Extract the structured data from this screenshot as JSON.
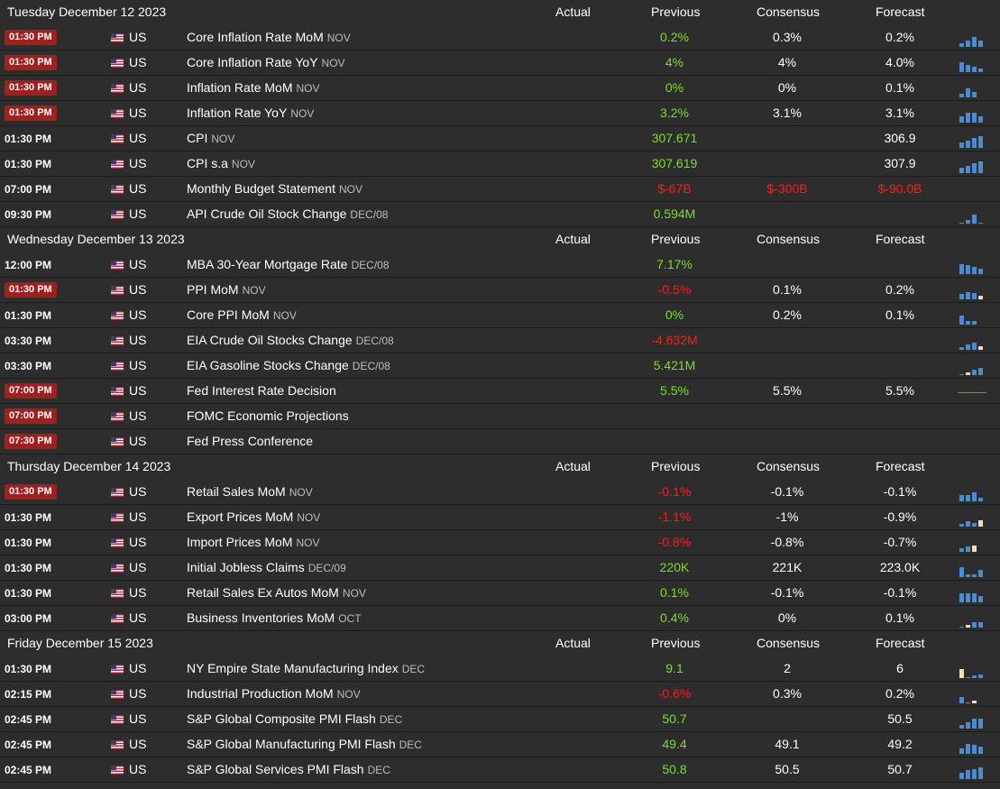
{
  "columns": {
    "actual": "Actual",
    "previous": "Previous",
    "consensus": "Consensus",
    "forecast": "Forecast"
  },
  "colors": {
    "positive": "#7ddf1f",
    "negative": "#ff1a1a",
    "badge": "#a21f1f",
    "spark_bar": "#4a8bd6",
    "spark_highlight": "#f2deb0"
  },
  "days": [
    {
      "title": "Tuesday December 12 2023",
      "events": [
        {
          "time": "01:30 PM",
          "highlight": true,
          "country": "US",
          "name": "Core Inflation Rate MoM",
          "ref": "NOV",
          "actual": "",
          "previous": "0.2%",
          "previous_color": "green",
          "consensus": "0.3%",
          "forecast": "0.2%",
          "spark_icon": "sparkline-icon",
          "spark": [
            {
              "v": 0.3
            },
            {
              "v": 0.5
            },
            {
              "v": 0.8
            },
            {
              "v": 0.5
            }
          ]
        },
        {
          "time": "01:30 PM",
          "highlight": true,
          "country": "US",
          "name": "Core Inflation Rate YoY",
          "ref": "NOV",
          "actual": "",
          "previous": "4%",
          "previous_color": "green",
          "consensus": "4%",
          "forecast": "4.0%",
          "spark_icon": "sparkline-icon",
          "spark": [
            {
              "v": 0.8
            },
            {
              "v": 0.6
            },
            {
              "v": 0.4
            },
            {
              "v": 0.3
            }
          ]
        },
        {
          "time": "01:30 PM",
          "highlight": true,
          "country": "US",
          "name": "Inflation Rate MoM",
          "ref": "NOV",
          "actual": "",
          "previous": "0%",
          "previous_color": "green",
          "consensus": "0%",
          "forecast": "0.1%",
          "spark_icon": "sparkline-icon",
          "spark": [
            {
              "v": 0.3
            },
            {
              "v": 0.7
            },
            {
              "v": 0.4
            }
          ]
        },
        {
          "time": "01:30 PM",
          "highlight": true,
          "country": "US",
          "name": "Inflation Rate YoY",
          "ref": "NOV",
          "actual": "",
          "previous": "3.2%",
          "previous_color": "green",
          "consensus": "3.1%",
          "forecast": "3.1%",
          "spark_icon": "sparkline-icon",
          "spark": [
            {
              "v": 0.5
            },
            {
              "v": 0.8
            },
            {
              "v": 0.8
            },
            {
              "v": 0.5
            }
          ]
        },
        {
          "time": "01:30 PM",
          "highlight": false,
          "country": "US",
          "name": "CPI",
          "ref": "NOV",
          "actual": "",
          "previous": "307.671",
          "previous_color": "green",
          "consensus": "",
          "forecast": "306.9",
          "spark_icon": "sparkline-icon",
          "spark": [
            {
              "v": 0.4
            },
            {
              "v": 0.6
            },
            {
              "v": 0.8
            },
            {
              "v": 0.9
            }
          ]
        },
        {
          "time": "01:30 PM",
          "highlight": false,
          "country": "US",
          "name": "CPI s.a",
          "ref": "NOV",
          "actual": "",
          "previous": "307.619",
          "previous_color": "green",
          "consensus": "",
          "forecast": "307.9",
          "spark_icon": "sparkline-icon",
          "spark": [
            {
              "v": 0.4
            },
            {
              "v": 0.6
            },
            {
              "v": 0.8
            },
            {
              "v": 0.9
            }
          ]
        },
        {
          "time": "07:00 PM",
          "highlight": false,
          "country": "US",
          "name": "Monthly Budget Statement",
          "ref": "NOV",
          "actual": "",
          "previous": "$-67B",
          "previous_color": "red",
          "consensus": "$-300B",
          "consensus_color": "red",
          "forecast": "$-90.0B",
          "forecast_color": "red",
          "spark_icon": "",
          "spark": []
        },
        {
          "time": "09:30 PM",
          "highlight": false,
          "country": "US",
          "name": "API Crude Oil Stock Change",
          "ref": "DEC/08",
          "actual": "",
          "previous": "0.594M",
          "previous_color": "green",
          "consensus": "",
          "forecast": "",
          "spark_icon": "sparkline-icon",
          "spark": [
            {
              "v": 0.1
            },
            {
              "v": 0.3
            },
            {
              "v": 0.7
            },
            {
              "v": 0.1
            }
          ]
        }
      ]
    },
    {
      "title": "Wednesday December 13 2023",
      "events": [
        {
          "time": "12:00 PM",
          "highlight": false,
          "country": "US",
          "name": "MBA 30-Year Mortgage Rate",
          "ref": "DEC/08",
          "actual": "",
          "previous": "7.17%",
          "previous_color": "green",
          "consensus": "",
          "forecast": "",
          "spark_icon": "sparkline-icon",
          "spark": [
            {
              "v": 0.8
            },
            {
              "v": 0.7
            },
            {
              "v": 0.6
            },
            {
              "v": 0.4
            }
          ]
        },
        {
          "time": "01:30 PM",
          "highlight": true,
          "country": "US",
          "name": "PPI MoM",
          "ref": "NOV",
          "actual": "",
          "previous": "-0.5%",
          "previous_color": "red",
          "consensus": "0.1%",
          "forecast": "0.2%",
          "spark_icon": "sparkline-icon",
          "spark": [
            {
              "v": 0.4
            },
            {
              "v": 0.6
            },
            {
              "v": 0.5
            },
            {
              "v": 0.3,
              "h": true
            }
          ]
        },
        {
          "time": "01:30 PM",
          "highlight": false,
          "country": "US",
          "name": "Core PPI MoM",
          "ref": "NOV",
          "actual": "",
          "previous": "0%",
          "previous_color": "green",
          "consensus": "0.2%",
          "forecast": "0.1%",
          "spark_icon": "sparkline-icon",
          "spark": [
            {
              "v": 0.7
            },
            {
              "v": 0.3
            },
            {
              "v": 0.3
            }
          ]
        },
        {
          "time": "03:30 PM",
          "highlight": false,
          "country": "US",
          "name": "EIA Crude Oil Stocks Change",
          "ref": "DEC/08",
          "actual": "",
          "previous": "-4.632M",
          "previous_color": "red",
          "consensus": "",
          "forecast": "",
          "spark_icon": "sparkline-icon",
          "spark": [
            {
              "v": 0.2
            },
            {
              "v": 0.4
            },
            {
              "v": 0.6
            },
            {
              "v": 0.3,
              "h": true
            }
          ]
        },
        {
          "time": "03:30 PM",
          "highlight": false,
          "country": "US",
          "name": "EIA Gasoline Stocks Change",
          "ref": "DEC/08",
          "actual": "",
          "previous": "5.421M",
          "previous_color": "green",
          "consensus": "",
          "forecast": "",
          "spark_icon": "sparkline-icon",
          "spark": [
            {
              "v": 0.1
            },
            {
              "v": 0.2,
              "h": true
            },
            {
              "v": 0.4
            },
            {
              "v": 0.6
            }
          ]
        },
        {
          "time": "07:00 PM",
          "highlight": true,
          "country": "US",
          "name": "Fed Interest Rate Decision",
          "ref": "",
          "actual": "",
          "previous": "5.5%",
          "previous_color": "green",
          "consensus": "5.5%",
          "forecast": "5.5%",
          "spark_icon": "flat-line-icon",
          "spark": [
            {
              "v": 0.05
            },
            {
              "v": 0.05
            },
            {
              "v": 0.05
            },
            {
              "v": 0.05
            }
          ]
        },
        {
          "time": "07:00 PM",
          "highlight": true,
          "country": "US",
          "name": "FOMC Economic Projections",
          "ref": "",
          "actual": "",
          "previous": "",
          "previous_color": "green",
          "consensus": "",
          "forecast": "",
          "spark_icon": "",
          "spark": []
        },
        {
          "time": "07:30 PM",
          "highlight": true,
          "country": "US",
          "name": "Fed Press Conference",
          "ref": "",
          "actual": "",
          "previous": "",
          "previous_color": "green",
          "consensus": "",
          "forecast": "",
          "spark_icon": "",
          "spark": []
        }
      ]
    },
    {
      "title": "Thursday December 14 2023",
      "events": [
        {
          "time": "01:30 PM",
          "highlight": true,
          "country": "US",
          "name": "Retail Sales MoM",
          "ref": "NOV",
          "actual": "",
          "previous": "-0.1%",
          "previous_color": "red",
          "consensus": "-0.1%",
          "forecast": "-0.1%",
          "spark_icon": "sparkline-icon",
          "spark": [
            {
              "v": 0.5
            },
            {
              "v": 0.5
            },
            {
              "v": 0.7
            },
            {
              "v": 0.3
            }
          ]
        },
        {
          "time": "01:30 PM",
          "highlight": false,
          "country": "US",
          "name": "Export Prices MoM",
          "ref": "NOV",
          "actual": "",
          "previous": "-1.1%",
          "previous_color": "red",
          "consensus": "-1%",
          "forecast": "-0.9%",
          "spark_icon": "sparkline-icon",
          "spark": [
            {
              "v": 0.2
            },
            {
              "v": 0.4
            },
            {
              "v": 0.3
            },
            {
              "v": 0.5,
              "h": true
            }
          ]
        },
        {
          "time": "01:30 PM",
          "highlight": false,
          "country": "US",
          "name": "Import Prices MoM",
          "ref": "NOV",
          "actual": "",
          "previous": "-0.8%",
          "previous_color": "red",
          "consensus": "-0.8%",
          "forecast": "-0.7%",
          "spark_icon": "sparkline-icon",
          "spark": [
            {
              "v": 0.3
            },
            {
              "v": 0.4
            },
            {
              "v": 0.5,
              "h": true
            }
          ]
        },
        {
          "time": "01:30 PM",
          "highlight": false,
          "country": "US",
          "name": "Initial Jobless Claims",
          "ref": "DEC/09",
          "actual": "",
          "previous": "220K",
          "previous_color": "green",
          "consensus": "221K",
          "forecast": "223.0K",
          "spark_icon": "sparkline-icon",
          "spark": [
            {
              "v": 0.8
            },
            {
              "v": 0.2
            },
            {
              "v": 0.2
            },
            {
              "v": 0.6
            }
          ]
        },
        {
          "time": "01:30 PM",
          "highlight": false,
          "country": "US",
          "name": "Retail Sales Ex Autos MoM",
          "ref": "NOV",
          "actual": "",
          "previous": "0.1%",
          "previous_color": "green",
          "consensus": "-0.1%",
          "forecast": "-0.1%",
          "spark_icon": "sparkline-icon",
          "spark": [
            {
              "v": 0.7
            },
            {
              "v": 0.7
            },
            {
              "v": 0.7
            },
            {
              "v": 0.5
            }
          ]
        },
        {
          "time": "03:00 PM",
          "highlight": false,
          "country": "US",
          "name": "Business Inventories MoM",
          "ref": "OCT",
          "actual": "",
          "previous": "0.4%",
          "previous_color": "green",
          "consensus": "0%",
          "forecast": "0.1%",
          "spark_icon": "sparkline-icon",
          "spark": [
            {
              "v": 0.1
            },
            {
              "v": 0.2,
              "h": true
            },
            {
              "v": 0.4
            },
            {
              "v": 0.4
            }
          ]
        }
      ]
    },
    {
      "title": "Friday December 15 2023",
      "events": [
        {
          "time": "01:30 PM",
          "highlight": false,
          "country": "US",
          "name": "NY Empire State Manufacturing Index",
          "ref": "DEC",
          "actual": "",
          "previous": "9.1",
          "previous_color": "green",
          "consensus": "2",
          "forecast": "6",
          "spark_icon": "sparkline-icon",
          "spark": [
            {
              "v": 0.7,
              "h": true
            },
            {
              "v": 0.1
            },
            {
              "v": 0.2
            },
            {
              "v": 0.3
            }
          ]
        },
        {
          "time": "02:15 PM",
          "highlight": false,
          "country": "US",
          "name": "Industrial Production MoM",
          "ref": "NOV",
          "actual": "",
          "previous": "-0.6%",
          "previous_color": "red",
          "consensus": "0.3%",
          "forecast": "0.2%",
          "spark_icon": "sparkline-icon",
          "spark": [
            {
              "v": 0.5
            },
            {
              "v": 0
            },
            {
              "v": 0.2,
              "h": true
            }
          ]
        },
        {
          "time": "02:45 PM",
          "highlight": false,
          "country": "US",
          "name": "S&P Global Composite PMI Flash",
          "ref": "DEC",
          "actual": "",
          "previous": "50.7",
          "previous_color": "green",
          "consensus": "",
          "forecast": "50.5",
          "spark_icon": "sparkline-icon",
          "spark": [
            {
              "v": 0.3
            },
            {
              "v": 0.5
            },
            {
              "v": 0.8
            },
            {
              "v": 0.8
            }
          ]
        },
        {
          "time": "02:45 PM",
          "highlight": false,
          "country": "US",
          "name": "S&P Global Manufacturing PMI Flash",
          "ref": "DEC",
          "actual": "",
          "previous": "49.4",
          "previous_color": "green",
          "consensus": "49.1",
          "forecast": "49.2",
          "spark_icon": "sparkline-icon",
          "spark": [
            {
              "v": 0.4
            },
            {
              "v": 0.8
            },
            {
              "v": 0.7
            },
            {
              "v": 0.6
            }
          ]
        },
        {
          "time": "02:45 PM",
          "highlight": false,
          "country": "US",
          "name": "S&P Global Services PMI Flash",
          "ref": "DEC",
          "actual": "",
          "previous": "50.8",
          "previous_color": "green",
          "consensus": "50.5",
          "forecast": "50.7",
          "spark_icon": "sparkline-icon",
          "spark": [
            {
              "v": 0.5
            },
            {
              "v": 0.7
            },
            {
              "v": 0.8
            },
            {
              "v": 0.9
            }
          ]
        }
      ]
    }
  ]
}
